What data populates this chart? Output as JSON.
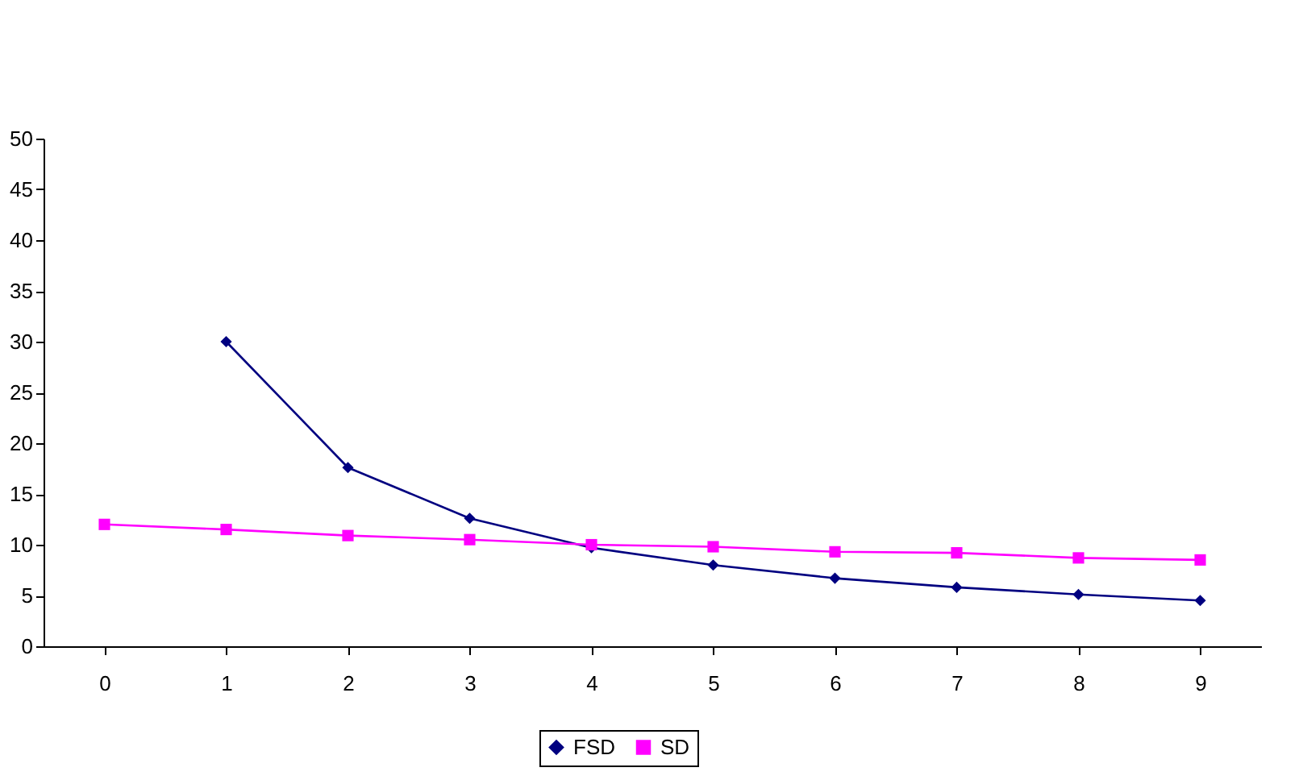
{
  "chart_data": {
    "type": "line",
    "categories": [
      "0",
      "1",
      "2",
      "3",
      "4",
      "5",
      "6",
      "7",
      "8",
      "9"
    ],
    "series": [
      {
        "name": "FSD",
        "color": "#000080",
        "marker": "diamond",
        "values": [
          null,
          30,
          17.6,
          12.6,
          9.7,
          8.0,
          6.7,
          5.8,
          5.1,
          4.5
        ]
      },
      {
        "name": "SD",
        "color": "#ff00ff",
        "marker": "square",
        "values": [
          12,
          11.5,
          10.9,
          10.5,
          10.0,
          9.8,
          9.3,
          9.2,
          8.7,
          8.5
        ]
      }
    ],
    "ylim": [
      0,
      50
    ],
    "yticks": [
      0,
      5,
      10,
      15,
      20,
      25,
      30,
      35,
      40,
      45,
      50
    ],
    "grid": false,
    "legend": "bottom",
    "line_style": "solid"
  }
}
